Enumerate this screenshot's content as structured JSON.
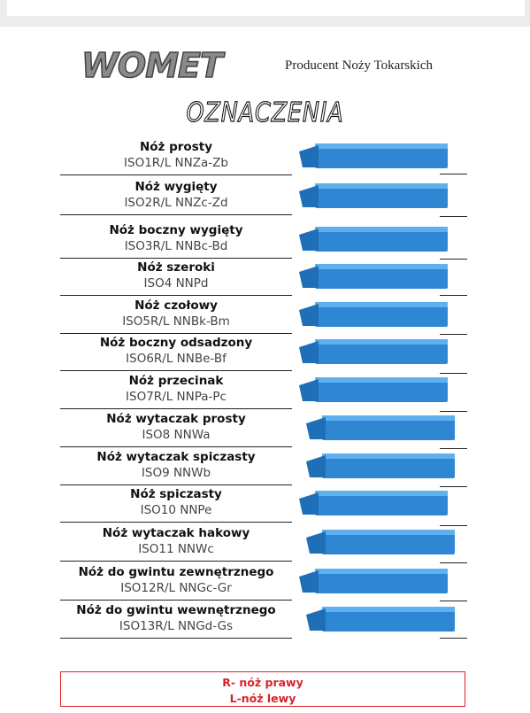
{
  "header": {
    "logo": "WOMET",
    "tagline": "Producent Noży Tokarskich",
    "title": "OZNACZENIA"
  },
  "items": [
    {
      "name": "Nóż prosty",
      "code": "ISO1R/L NNZa-Zb"
    },
    {
      "name": "Nóż wygięty",
      "code": "ISO2R/L NNZc-Zd"
    },
    {
      "name": "Nóż boczny wygięty",
      "code": "ISO3R/L NNBc-Bd"
    },
    {
      "name": "Nóż szeroki",
      "code": "ISO4 NNPd"
    },
    {
      "name": "Nóż czołowy",
      "code": "ISO5R/L NNBk-Bm"
    },
    {
      "name": "Nóż boczny odsadzony",
      "code": "ISO6R/L NNBe-Bf"
    },
    {
      "name": "Nóż przecinak",
      "code": "ISO7R/L NNPa-Pc"
    },
    {
      "name": "Nóż wytaczak prosty",
      "code": "ISO8 NNWa"
    },
    {
      "name": "Nóż wytaczak spiczasty",
      "code": "ISO9 NNWb"
    },
    {
      "name": "Nóż spiczasty",
      "code": "ISO10 NNPe"
    },
    {
      "name": "Nóż wytaczak hakowy",
      "code": "ISO11 NNWc"
    },
    {
      "name": "Nóż do gwintu zewnętrznego",
      "code": "ISO12R/L  NNGc-Gr"
    },
    {
      "name": "Nóż do gwintu wewnętrznego",
      "code": "ISO13R/L NNGd-Gs"
    }
  ],
  "legend": {
    "right": "R- nóż prawy",
    "left": "L-nóż lewy"
  }
}
